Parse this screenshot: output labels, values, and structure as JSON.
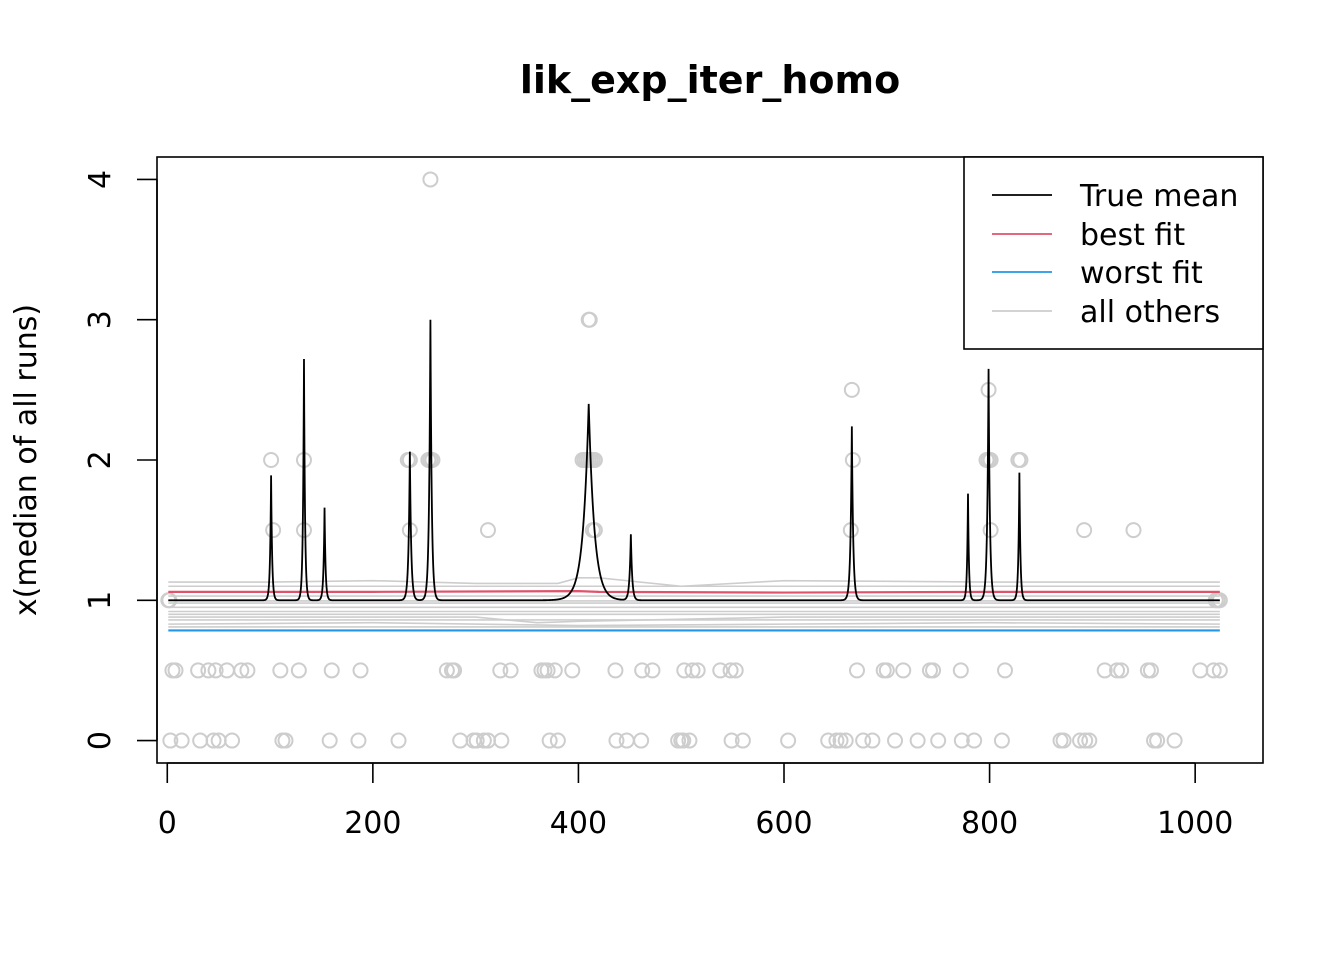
{
  "chart_data": {
    "type": "line",
    "title": "lik_exp_iter_homo",
    "xlabel": "",
    "ylabel": "x(median of all runs)",
    "xlim": [
      -10,
      1066
    ],
    "ylim": [
      -0.16,
      4.16
    ],
    "x_ticks": [
      0,
      200,
      400,
      600,
      800,
      1000
    ],
    "y_ticks": [
      0,
      1,
      2,
      3,
      4
    ],
    "grid": false,
    "legend_position": "top-right",
    "legend": [
      {
        "label": "True mean",
        "color": "#000000"
      },
      {
        "label": "best fit",
        "color": "#DF536B"
      },
      {
        "label": "worst fit",
        "color": "#2297E6"
      },
      {
        "label": "all others",
        "color": "#CDCDCD"
      }
    ],
    "true_mean": {
      "name": "True mean",
      "color": "#000000",
      "baseline": 1.0,
      "x_range": [
        1,
        1024
      ],
      "peaks": [
        {
          "x": 101,
          "y": 1.89,
          "width": 1.0
        },
        {
          "x": 133,
          "y": 2.72,
          "width": 1.0
        },
        {
          "x": 153,
          "y": 1.66,
          "width": 1.0
        },
        {
          "x": 236,
          "y": 2.06,
          "width": 1.3
        },
        {
          "x": 256,
          "y": 3.0,
          "width": 1.3
        },
        {
          "x": 410,
          "y": 2.4,
          "width": 5.5
        },
        {
          "x": 451,
          "y": 1.47,
          "width": 1.3
        },
        {
          "x": 666,
          "y": 2.24,
          "width": 1.3
        },
        {
          "x": 779,
          "y": 1.76,
          "width": 0.9
        },
        {
          "x": 799,
          "y": 2.65,
          "width": 1.3
        },
        {
          "x": 829,
          "y": 1.91,
          "width": 1.0
        }
      ]
    },
    "best_fit": {
      "name": "best fit",
      "color": "#DF536B",
      "x": [
        1,
        200,
        400,
        420,
        600,
        800,
        1024
      ],
      "y": [
        1.06,
        1.06,
        1.065,
        1.06,
        1.055,
        1.06,
        1.06
      ]
    },
    "worst_fit": {
      "name": "worst fit",
      "color": "#2297E6",
      "x": [
        1,
        1024
      ],
      "y": [
        0.785,
        0.785
      ]
    },
    "others": {
      "name": "all others",
      "color": "#CDCDCD",
      "lines": [
        {
          "x": [
            1,
            100,
            200,
            300,
            380,
            400,
            420,
            500,
            600,
            800,
            1024
          ],
          "y": [
            1.13,
            1.13,
            1.14,
            1.12,
            1.12,
            1.16,
            1.16,
            1.1,
            1.14,
            1.13,
            1.13
          ]
        },
        {
          "x": [
            1,
            1024
          ],
          "y": [
            1.1,
            1.1
          ]
        },
        {
          "x": [
            1,
            1024
          ],
          "y": [
            1.03,
            1.03
          ]
        },
        {
          "x": [
            1,
            1024
          ],
          "y": [
            0.98,
            0.98
          ]
        },
        {
          "x": [
            1,
            400,
            1024
          ],
          "y": [
            0.95,
            0.95,
            0.95
          ]
        },
        {
          "x": [
            1,
            1024
          ],
          "y": [
            0.92,
            0.92
          ]
        },
        {
          "x": [
            1,
            1024
          ],
          "y": [
            0.9,
            0.9
          ]
        },
        {
          "x": [
            1,
            300,
            360,
            400,
            600,
            1024
          ],
          "y": [
            0.88,
            0.88,
            0.84,
            0.85,
            0.88,
            0.88
          ]
        },
        {
          "x": [
            1,
            1024
          ],
          "y": [
            0.86,
            0.86
          ]
        },
        {
          "x": [
            1,
            200,
            400,
            600,
            800,
            1024
          ],
          "y": [
            0.83,
            0.84,
            0.82,
            0.83,
            0.84,
            0.83
          ]
        },
        {
          "x": [
            1,
            1024
          ],
          "y": [
            0.81,
            0.81
          ]
        },
        {
          "x": [
            1,
            1024
          ],
          "y": [
            0.995,
            0.995
          ]
        }
      ],
      "points": [
        [
          1,
          1
        ],
        [
          2,
          1
        ],
        [
          1020,
          1
        ],
        [
          1022,
          1
        ],
        [
          1024,
          1
        ],
        [
          256,
          4.0
        ],
        [
          410,
          3.0
        ],
        [
          411,
          3.0
        ],
        [
          666,
          2.5
        ],
        [
          799,
          2.5
        ],
        [
          101,
          2.0
        ],
        [
          133,
          2.0
        ],
        [
          234,
          2.0
        ],
        [
          236,
          2.0
        ],
        [
          254,
          2.0
        ],
        [
          256,
          2.0
        ],
        [
          258,
          2.0
        ],
        [
          404,
          2.0
        ],
        [
          406,
          2.0
        ],
        [
          408,
          2.0
        ],
        [
          410,
          2.0
        ],
        [
          412,
          2.0
        ],
        [
          414,
          2.0
        ],
        [
          416,
          2.0
        ],
        [
          667,
          2.0
        ],
        [
          797,
          2.0
        ],
        [
          799,
          2.0
        ],
        [
          801,
          2.0
        ],
        [
          828,
          2.0
        ],
        [
          830,
          2.0
        ],
        [
          103,
          1.5
        ],
        [
          133,
          1.5
        ],
        [
          236,
          1.5
        ],
        [
          312,
          1.5
        ],
        [
          414,
          1.5
        ],
        [
          416,
          1.5
        ],
        [
          665,
          1.5
        ],
        [
          801,
          1.5
        ],
        [
          892,
          1.5
        ],
        [
          940,
          1.5
        ],
        [
          5,
          0.5
        ],
        [
          8,
          0.5
        ],
        [
          30,
          0.5
        ],
        [
          40,
          0.5
        ],
        [
          47,
          0.5
        ],
        [
          58,
          0.5
        ],
        [
          72,
          0.5
        ],
        [
          78,
          0.5
        ],
        [
          110,
          0.5
        ],
        [
          128,
          0.5
        ],
        [
          160,
          0.5
        ],
        [
          188,
          0.5
        ],
        [
          272,
          0.5
        ],
        [
          277,
          0.5
        ],
        [
          279,
          0.5
        ],
        [
          324,
          0.5
        ],
        [
          334,
          0.5
        ],
        [
          364,
          0.5
        ],
        [
          367,
          0.5
        ],
        [
          370,
          0.5
        ],
        [
          377,
          0.5
        ],
        [
          394,
          0.5
        ],
        [
          436,
          0.5
        ],
        [
          462,
          0.5
        ],
        [
          472,
          0.5
        ],
        [
          503,
          0.5
        ],
        [
          511,
          0.5
        ],
        [
          516,
          0.5
        ],
        [
          538,
          0.5
        ],
        [
          548,
          0.5
        ],
        [
          553,
          0.5
        ],
        [
          671,
          0.5
        ],
        [
          697,
          0.5
        ],
        [
          700,
          0.5
        ],
        [
          716,
          0.5
        ],
        [
          742,
          0.5
        ],
        [
          745,
          0.5
        ],
        [
          772,
          0.5
        ],
        [
          815,
          0.5
        ],
        [
          912,
          0.5
        ],
        [
          924,
          0.5
        ],
        [
          928,
          0.5
        ],
        [
          954,
          0.5
        ],
        [
          957,
          0.5
        ],
        [
          1005,
          0.5
        ],
        [
          1018,
          0.5
        ],
        [
          1024,
          0.5
        ],
        [
          3,
          0
        ],
        [
          14,
          0
        ],
        [
          32,
          0
        ],
        [
          45,
          0
        ],
        [
          50,
          0
        ],
        [
          63,
          0
        ],
        [
          112,
          0
        ],
        [
          115,
          0
        ],
        [
          158,
          0
        ],
        [
          186,
          0
        ],
        [
          225,
          0
        ],
        [
          285,
          0
        ],
        [
          298,
          0
        ],
        [
          301,
          0
        ],
        [
          308,
          0
        ],
        [
          312,
          0
        ],
        [
          325,
          0
        ],
        [
          372,
          0
        ],
        [
          380,
          0
        ],
        [
          437,
          0
        ],
        [
          447,
          0
        ],
        [
          461,
          0
        ],
        [
          497,
          0
        ],
        [
          500,
          0
        ],
        [
          502,
          0
        ],
        [
          508,
          0
        ],
        [
          549,
          0
        ],
        [
          560,
          0
        ],
        [
          604,
          0
        ],
        [
          643,
          0
        ],
        [
          651,
          0
        ],
        [
          655,
          0
        ],
        [
          660,
          0
        ],
        [
          677,
          0
        ],
        [
          686,
          0
        ],
        [
          708,
          0
        ],
        [
          730,
          0
        ],
        [
          750,
          0
        ],
        [
          773,
          0
        ],
        [
          785,
          0
        ],
        [
          812,
          0
        ],
        [
          869,
          0
        ],
        [
          872,
          0
        ],
        [
          888,
          0
        ],
        [
          893,
          0
        ],
        [
          897,
          0
        ],
        [
          960,
          0
        ],
        [
          963,
          0
        ],
        [
          980,
          0
        ]
      ]
    }
  }
}
